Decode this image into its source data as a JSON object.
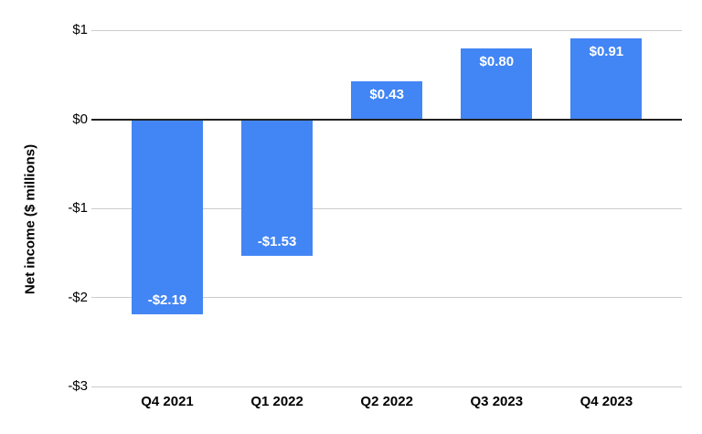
{
  "chart_data": {
    "type": "bar",
    "title": "",
    "xlabel": "",
    "ylabel": "Net income ($ millions)",
    "categories": [
      "Q4 2021",
      "Q1 2022",
      "Q2 2022",
      "Q3 2023",
      "Q4 2023"
    ],
    "values": [
      -2.19,
      -1.53,
      0.43,
      0.8,
      0.91
    ],
    "data_labels": [
      "-$2.19",
      "-$1.53",
      "$0.43",
      "$0.80",
      "$0.91"
    ],
    "ylim": [
      -3,
      1
    ],
    "yticks": [
      {
        "value": 1,
        "label": "$1"
      },
      {
        "value": 0,
        "label": "$0"
      },
      {
        "value": -1,
        "label": "-$1"
      },
      {
        "value": -2,
        "label": "-$2"
      },
      {
        "value": -3,
        "label": "-$3"
      }
    ],
    "grid": true,
    "legend": "none",
    "colors": {
      "bar": "#4285F4",
      "grid": "#cccccc",
      "zero_axis": "#222222",
      "bar_label_text": "#ffffff",
      "tick_text": "#000000"
    }
  }
}
